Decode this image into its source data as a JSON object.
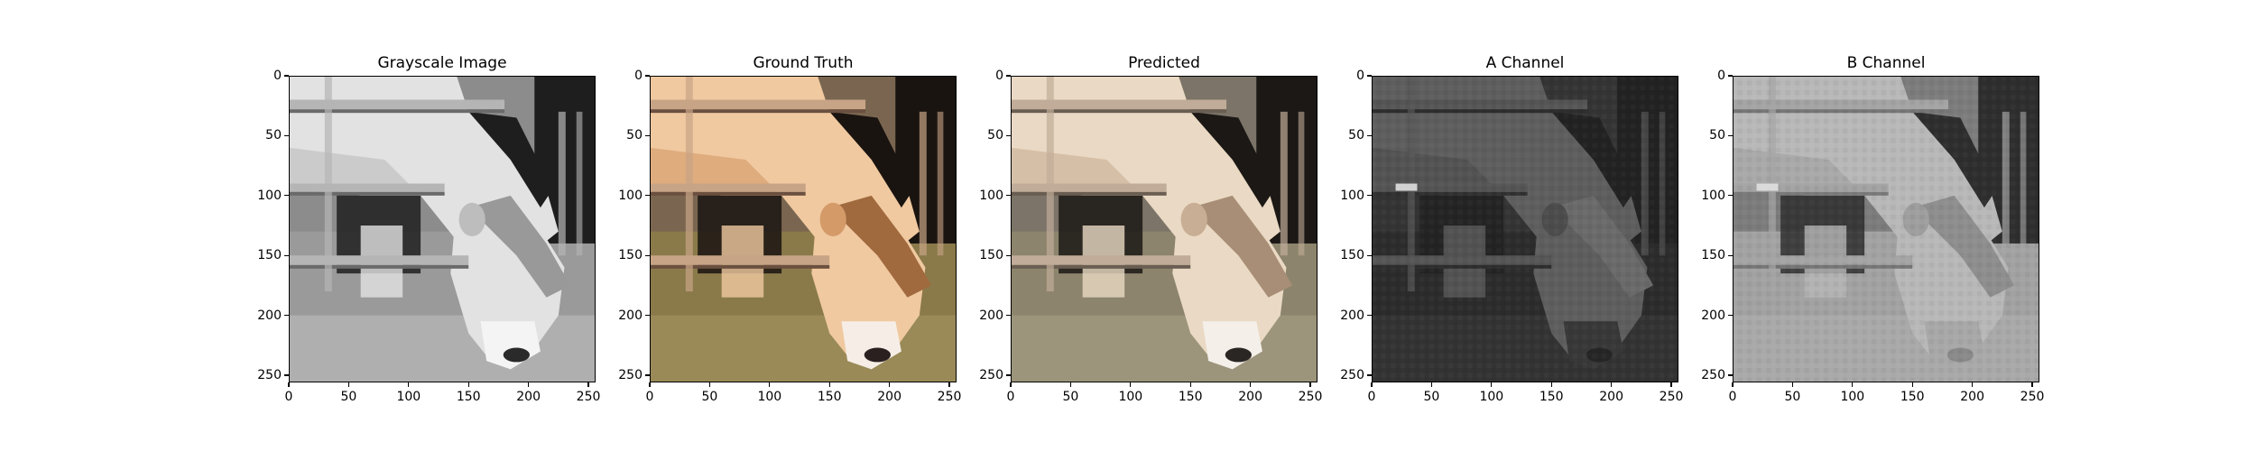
{
  "figure": {
    "panels": [
      {
        "id": "gray",
        "title": "Grayscale Image",
        "palette": {
          "bg": "#8c8c8c",
          "body": "#e2e2e2",
          "bodyShade": "#bdbdbd",
          "dark": "#1e1e1e",
          "ground": "#9a9a9a",
          "groundLight": "#c4c4c4",
          "rail": "#b5b5b5",
          "railDark": "#6a6a6a",
          "snout": "#f4f4f4",
          "nose": "#2a2a2a",
          "fringe": "#999999"
        }
      },
      {
        "id": "truth",
        "title": "Ground Truth",
        "palette": {
          "bg": "#7a6650",
          "body": "#f0c9a0",
          "bodyShade": "#d49a68",
          "dark": "#1a1410",
          "ground": "#8a7a4a",
          "groundLight": "#a89a66",
          "rail": "#c8a486",
          "railDark": "#6b5040",
          "snout": "#f6eee6",
          "nose": "#2b2020",
          "fringe": "#a06a3e"
        }
      },
      {
        "id": "pred",
        "title": "Predicted",
        "palette": {
          "bg": "#7c7468",
          "body": "#ead9c4",
          "bodyShade": "#c8ae94",
          "dark": "#1b1815",
          "ground": "#8c846c",
          "groundLight": "#aca68a",
          "rail": "#c0ac98",
          "railDark": "#6a5e52",
          "snout": "#f4efe9",
          "nose": "#2a2624",
          "fringe": "#a88e76"
        }
      },
      {
        "id": "a",
        "title": "A Channel",
        "palette": {
          "bg": "#343434",
          "body": "#5e5e5e",
          "bodyShade": "#4c4c4c",
          "dark": "#222222",
          "ground": "#2c2c2c",
          "groundLight": "#3a3a3a",
          "rail": "#555555",
          "railDark": "#2e2e2e",
          "snout": "#383838",
          "nose": "#262626",
          "fringe": "#6a6a6a"
        }
      },
      {
        "id": "b",
        "title": "B Channel",
        "palette": {
          "bg": "#7c7c7c",
          "body": "#b8b8b8",
          "bodyShade": "#9e9e9e",
          "dark": "#2e2e2e",
          "ground": "#a2a2a2",
          "groundLight": "#b0b0b0",
          "rail": "#a4a4a4",
          "railDark": "#777777",
          "snout": "#a8a8a8",
          "nose": "#8a8a8a",
          "fringe": "#8e8e8e"
        }
      }
    ],
    "axes": {
      "xlim": [
        0,
        256
      ],
      "ylim": [
        256,
        0
      ],
      "x_ticks": [
        0,
        50,
        100,
        150,
        200,
        250
      ],
      "y_ticks": [
        0,
        50,
        100,
        150,
        200,
        250
      ],
      "x_tick_labels": [
        "0",
        "50",
        "100",
        "150",
        "200",
        "250"
      ],
      "y_tick_labels": [
        "0",
        "50",
        "100",
        "150",
        "200",
        "250"
      ]
    }
  }
}
